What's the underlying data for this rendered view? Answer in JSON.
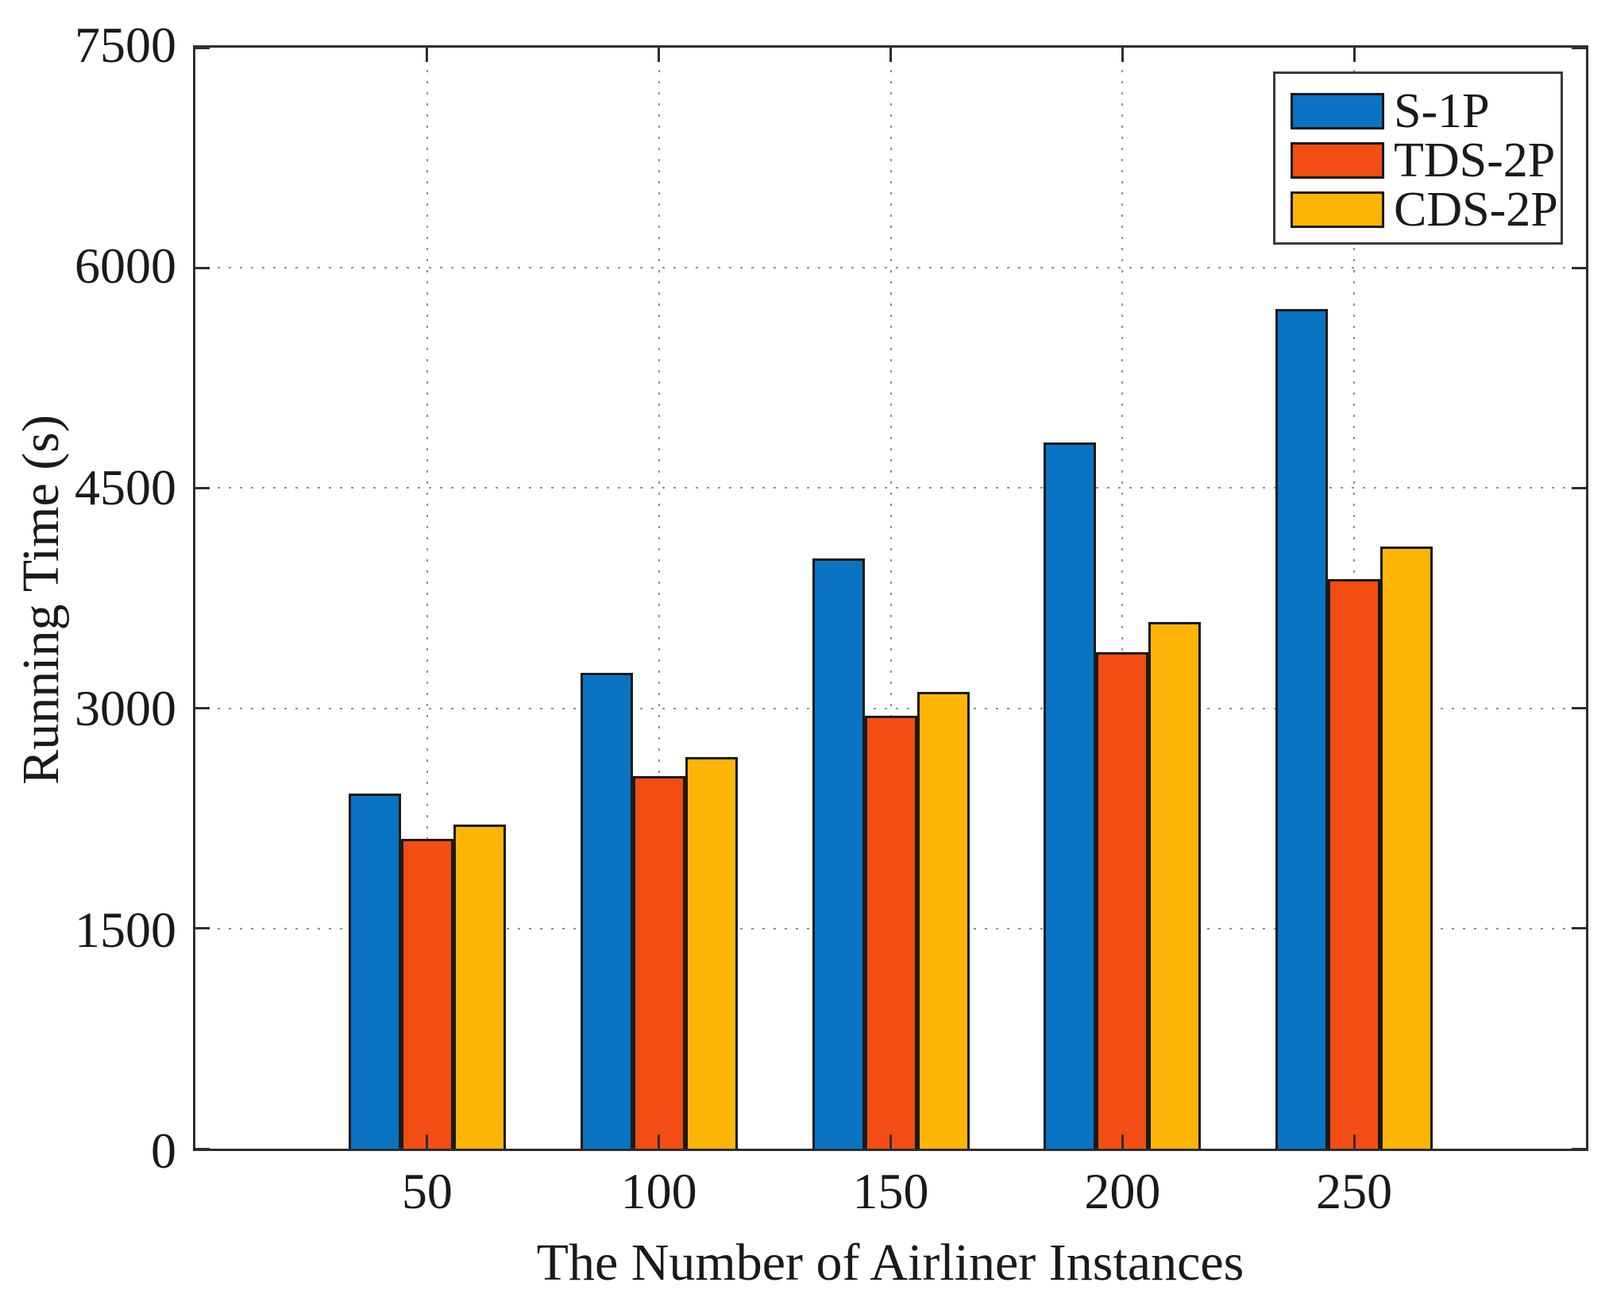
{
  "figure": {
    "background": "#ffffff",
    "axis_color": "#2e2e2e",
    "grid_color": "#8f8f8f",
    "bar_edge_color": "#1a1a1a"
  },
  "chart_data": {
    "type": "bar",
    "title": "",
    "xlabel": "The Number of Airliner Instances",
    "ylabel": "Running Time (s)",
    "categories": [
      "50",
      "100",
      "150",
      "200",
      "250"
    ],
    "series": [
      {
        "name": "S-1P",
        "color": "#0a73c2",
        "values": [
          2420,
          3240,
          4020,
          4810,
          5720
        ]
      },
      {
        "name": "TDS-2P",
        "color": "#f24e13",
        "values": [
          2110,
          2540,
          2950,
          3380,
          3880
        ]
      },
      {
        "name": "CDS-2P",
        "color": "#ffb408",
        "values": [
          2210,
          2670,
          3110,
          3590,
          4100
        ]
      }
    ],
    "ylim": [
      0,
      7500
    ],
    "yticks": [
      0,
      1500,
      3000,
      4500,
      6000,
      7500
    ],
    "grid": "dotted",
    "legend_position": "top-right"
  }
}
